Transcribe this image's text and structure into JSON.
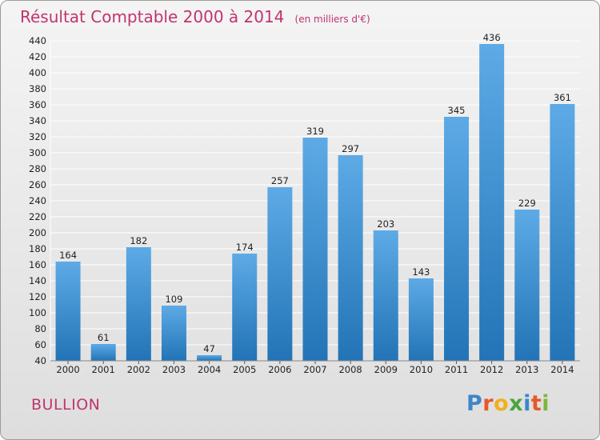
{
  "title": "Résultat Comptable 2000 à 2014",
  "subtitle": "(en milliers d'€)",
  "location": "BULLION",
  "logo": {
    "letters": [
      "P",
      "r",
      "o",
      "x",
      "i",
      "t",
      "i"
    ],
    "colors": [
      "#3d86c8",
      "#e8572a",
      "#f2b01e",
      "#4aa53f",
      "#3d86c8",
      "#e8572a",
      "#7cb83b"
    ]
  },
  "colors": {
    "bar_light": "#5daae6",
    "bar_dark": "#2274b6",
    "grid": "#ffffff",
    "text_accent": "#c0346e"
  },
  "chart_data": {
    "type": "bar",
    "categories": [
      "2000",
      "2001",
      "2002",
      "2003",
      "2004",
      "2005",
      "2006",
      "2007",
      "2008",
      "2009",
      "2010",
      "2011",
      "2012",
      "2013",
      "2014"
    ],
    "values": [
      164,
      61,
      182,
      109,
      47,
      174,
      257,
      319,
      297,
      203,
      143,
      345,
      436,
      229,
      361
    ],
    "title": "Résultat Comptable 2000 à 2014",
    "ylim": [
      40,
      440
    ],
    "yticks": [
      40,
      60,
      80,
      100,
      120,
      140,
      160,
      180,
      200,
      220,
      240,
      260,
      280,
      300,
      320,
      340,
      360,
      380,
      400,
      420,
      440
    ],
    "grid": true,
    "data_labels": true
  }
}
